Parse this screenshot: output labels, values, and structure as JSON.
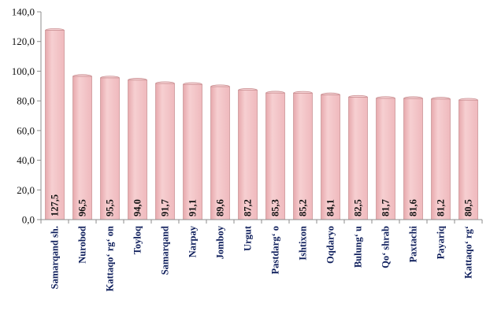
{
  "chart_data": {
    "type": "bar",
    "title": "",
    "xlabel": "",
    "ylabel": "",
    "ylim": [
      0,
      140
    ],
    "yticks": [
      "0,0",
      "20,0",
      "40,0",
      "60,0",
      "80,0",
      "100,0",
      "120,0",
      "140,0"
    ],
    "ytick_values": [
      0,
      20,
      40,
      60,
      80,
      100,
      120,
      140
    ],
    "grid": false,
    "legend": "none",
    "bar_color": "#f4c5c7",
    "bar_edge_color": "#c98d90",
    "categories": [
      "Samarqand sh.",
      "Nurobod",
      "Kattaqo‘ rg‘ on",
      "Toyloq",
      "Samarqand",
      "Narpay",
      "Jomboy",
      "Urgut",
      "Pastdarg‘ o",
      "Ishtixon",
      "Oqdaryo",
      "Bulung‘ u",
      "Qo‘ shrab",
      "Paxtachi",
      "Payariq",
      "Kattaqo‘ rg‘"
    ],
    "values": [
      127.5,
      96.5,
      95.5,
      94.0,
      91.7,
      91.1,
      89.6,
      87.2,
      85.3,
      85.2,
      84.1,
      82.5,
      81.7,
      81.6,
      81.2,
      80.5
    ],
    "value_labels": [
      "127,5",
      "96,5",
      "95,5",
      "94,0",
      "91,7",
      "91,1",
      "89,6",
      "87,2",
      "85,3",
      "85,2",
      "84,1",
      "82,5",
      "81,7",
      "81,6",
      "81,2",
      "80,5"
    ]
  }
}
